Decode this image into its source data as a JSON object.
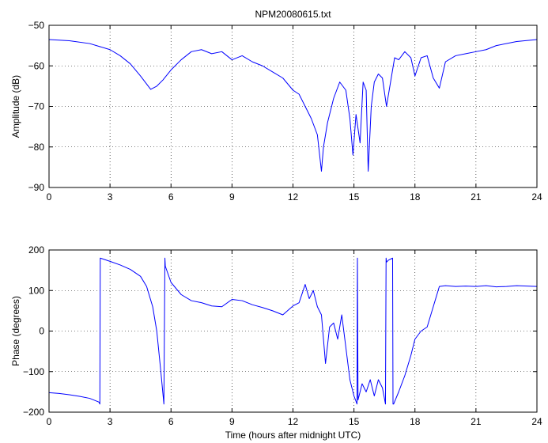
{
  "chart_data": [
    {
      "type": "line",
      "title": "NPM20080615.txt",
      "xlabel": "",
      "ylabel": "Amplitude (dB)",
      "xlim": [
        0,
        24
      ],
      "ylim": [
        -90,
        -50
      ],
      "xticks": [
        "0",
        "3",
        "6",
        "9",
        "12",
        "15",
        "18",
        "21",
        "24"
      ],
      "yticks": [
        "-90",
        "-80",
        "-70",
        "-60",
        "-50"
      ],
      "grid": true,
      "series": [
        {
          "color": "#0000ff",
          "x": [
            0,
            1,
            2,
            3,
            3.5,
            4,
            4.5,
            5,
            5.3,
            5.6,
            6,
            6.5,
            7,
            7.5,
            8,
            8.5,
            9,
            9.5,
            10,
            10.5,
            11,
            11.5,
            12,
            12.3,
            12.6,
            12.9,
            13.2,
            13.4,
            13.5,
            13.7,
            14,
            14.3,
            14.6,
            14.8,
            14.95,
            15.1,
            15.3,
            15.45,
            15.6,
            15.7,
            15.85,
            16,
            16.2,
            16.4,
            16.6,
            16.8,
            17,
            17.2,
            17.5,
            17.8,
            18,
            18.3,
            18.6,
            18.9,
            19.2,
            19.5,
            20,
            20.5,
            21,
            21.5,
            22,
            23,
            24
          ],
          "y": [
            -53.5,
            -53.8,
            -54.5,
            -56,
            -57.5,
            -59.5,
            -62.5,
            -65.8,
            -65,
            -63.5,
            -61,
            -58.5,
            -56.5,
            -56,
            -57,
            -56.5,
            -58.5,
            -57.5,
            -59,
            -60,
            -61.5,
            -63,
            -66,
            -67,
            -70,
            -73,
            -77,
            -86,
            -80,
            -74,
            -68,
            -64,
            -66,
            -73,
            -82,
            -72,
            -79,
            -64,
            -66,
            -86,
            -70,
            -64,
            -62,
            -63,
            -70,
            -64,
            -58,
            -58.5,
            -56.5,
            -58,
            -62.5,
            -58,
            -57.5,
            -63,
            -65.5,
            -59,
            -57.5,
            -57,
            -56.5,
            -56,
            -55,
            -54,
            -53.5
          ]
        }
      ]
    },
    {
      "type": "line",
      "title": "",
      "xlabel": "Time (hours after midnight UTC)",
      "ylabel": "Phase (degrees)",
      "xlim": [
        0,
        24
      ],
      "ylim": [
        -200,
        200
      ],
      "xticks": [
        "0",
        "3",
        "6",
        "9",
        "12",
        "15",
        "18",
        "21",
        "24"
      ],
      "yticks": [
        "-200",
        "-100",
        "0",
        "100",
        "200"
      ],
      "grid": true,
      "series": [
        {
          "color": "#0000ff",
          "x": [
            0,
            0.5,
            1,
            1.5,
            2,
            2.45,
            2.5,
            2.52,
            3,
            3.5,
            4,
            4.5,
            4.8,
            5.1,
            5.3,
            5.5,
            5.65,
            5.7,
            5.72,
            6,
            6.5,
            7,
            7.5,
            8,
            8.5,
            9,
            9.5,
            10,
            10.5,
            11,
            11.5,
            12,
            12.3,
            12.6,
            12.8,
            13,
            13.2,
            13.4,
            13.6,
            13.8,
            14,
            14.2,
            14.4,
            14.6,
            14.8,
            15,
            15.15,
            15.17,
            15.2,
            15.4,
            15.6,
            15.8,
            16,
            16.2,
            16.4,
            16.55,
            16.58,
            16.6,
            16.7,
            16.9,
            16.92,
            16.95,
            17.2,
            17.5,
            17.8,
            18,
            18.3,
            18.6,
            18.9,
            19.2,
            19.5,
            20,
            20.5,
            21,
            21.5,
            22,
            22.5,
            23,
            23.5,
            24
          ],
          "y": [
            -152,
            -154,
            -157,
            -161,
            -166,
            -175,
            -180,
            180,
            172,
            163,
            152,
            135,
            110,
            60,
            0,
            -100,
            -180,
            180,
            160,
            120,
            90,
            75,
            70,
            62,
            60,
            78,
            75,
            65,
            58,
            50,
            40,
            62,
            70,
            115,
            80,
            100,
            60,
            40,
            -80,
            10,
            20,
            -20,
            40,
            -40,
            -120,
            -160,
            -180,
            180,
            -170,
            -130,
            -150,
            -120,
            -160,
            -120,
            -140,
            -180,
            180,
            170,
            175,
            180,
            -180,
            -180,
            -150,
            -110,
            -60,
            -20,
            0,
            10,
            60,
            110,
            112,
            110,
            111,
            110,
            112,
            109,
            110,
            112,
            111,
            110
          ]
        }
      ]
    }
  ]
}
